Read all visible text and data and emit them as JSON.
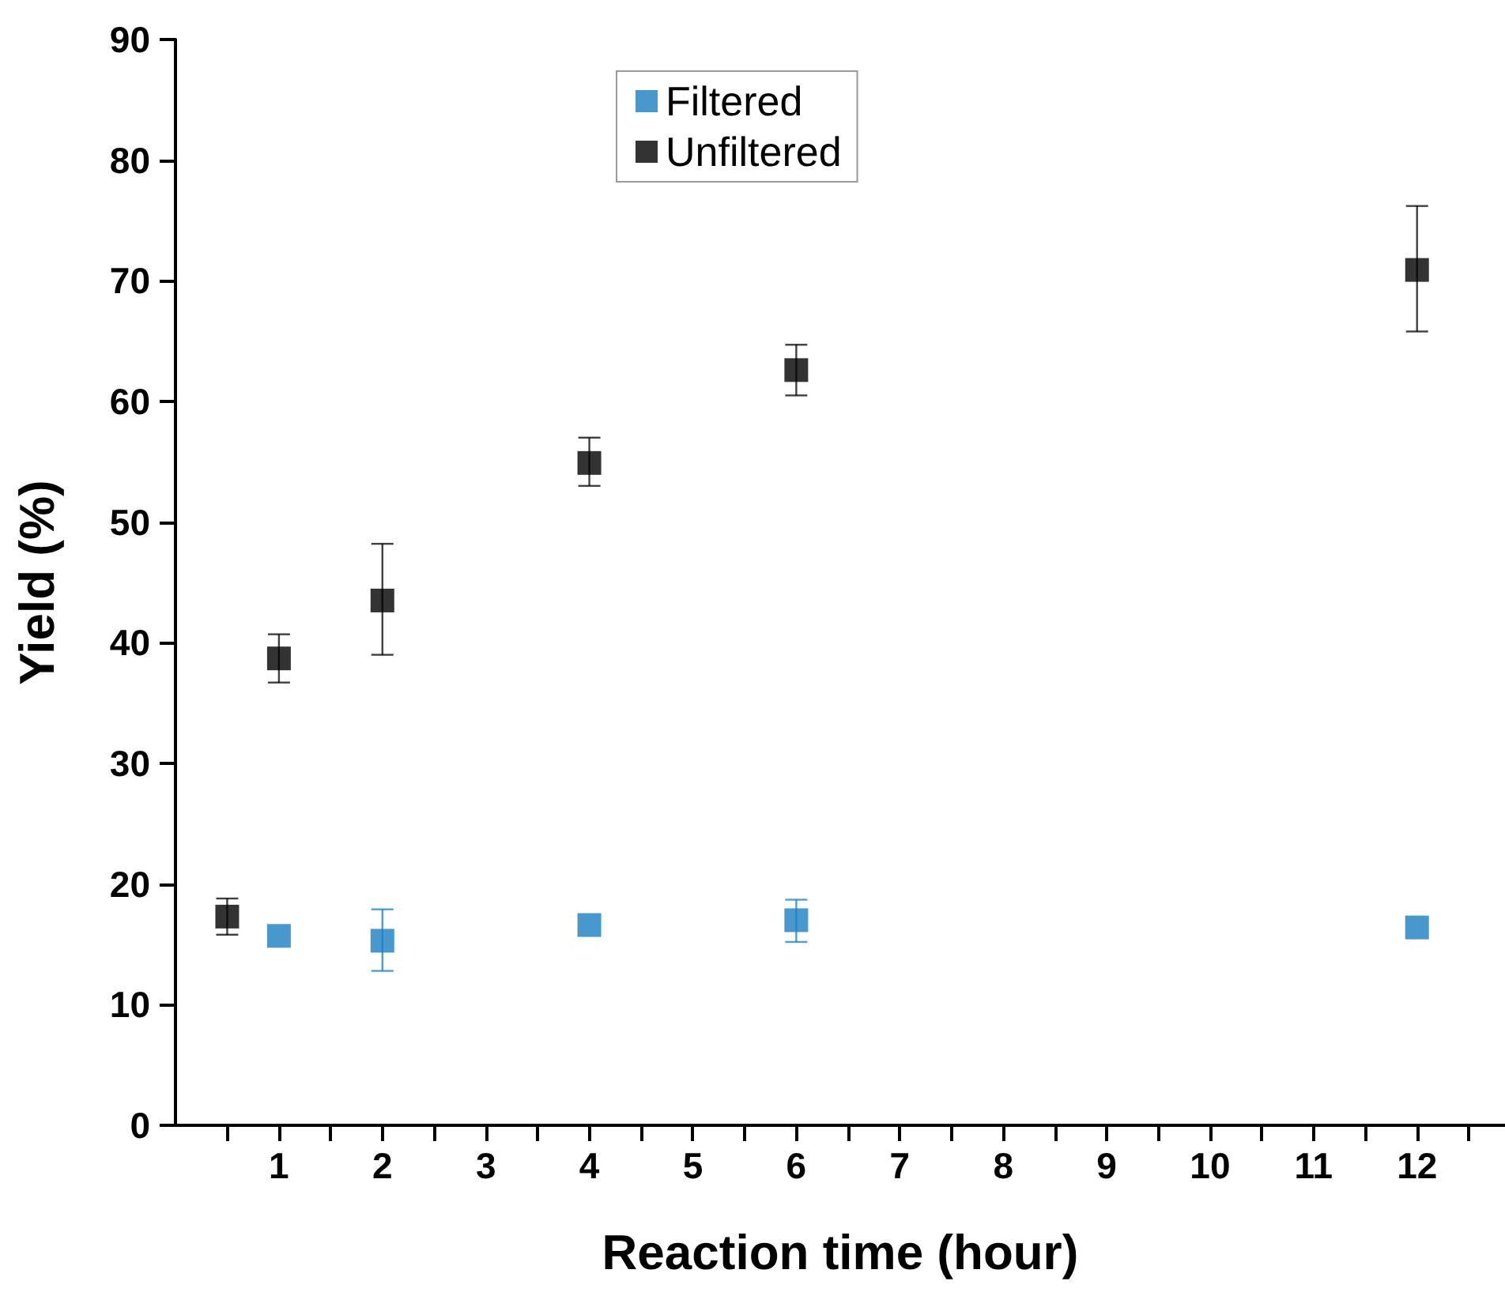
{
  "chart_data": {
    "type": "scatter",
    "xlabel": "Reaction time (hour)",
    "ylabel": "Yield (%)",
    "series": [
      {
        "name": "Filtered",
        "color": "#1a7dc0",
        "x": [
          1,
          2,
          4,
          6,
          12
        ],
        "values": [
          15.7,
          15.3,
          16.6,
          17.0,
          16.4
        ],
        "errors": [
          null,
          [
            12.8,
            17.9
          ],
          null,
          [
            15.2,
            18.7
          ],
          null
        ]
      },
      {
        "name": "Unfiltered",
        "color": "#000000",
        "x": [
          0.5,
          1,
          2,
          4,
          6,
          12
        ],
        "values": [
          17.3,
          38.7,
          43.5,
          54.9,
          62.6,
          70.9
        ],
        "errors": [
          [
            15.8,
            18.8
          ],
          [
            36.7,
            40.7
          ],
          [
            39.0,
            48.2
          ],
          [
            53.0,
            57.0
          ],
          [
            60.5,
            64.7
          ],
          [
            65.8,
            76.2
          ]
        ]
      }
    ],
    "xlim": [
      0,
      12.85
    ],
    "xticks": [
      {
        "value": 0.5,
        "label": null
      },
      1,
      {
        "value": 1.5,
        "label": null
      },
      2,
      {
        "value": 2.5,
        "label": null
      },
      3,
      {
        "value": 3.5,
        "label": null
      },
      4,
      {
        "value": 4.5,
        "label": null
      },
      5,
      {
        "value": 5.5,
        "label": null
      },
      6,
      {
        "value": 6.5,
        "label": null
      },
      7,
      {
        "value": 7.5,
        "label": null
      },
      8,
      {
        "value": 8.5,
        "label": null
      },
      9,
      {
        "value": 9.5,
        "label": null
      },
      10,
      {
        "value": 10.5,
        "label": null
      },
      11,
      {
        "value": 11.5,
        "label": null
      },
      12,
      {
        "value": 12.5,
        "label": null
      }
    ],
    "ylim": [
      0,
      90
    ],
    "yticks": [
      0,
      10,
      20,
      30,
      40,
      50,
      60,
      70,
      80,
      90
    ],
    "marker": "square",
    "legend": "top",
    "grid": false
  }
}
